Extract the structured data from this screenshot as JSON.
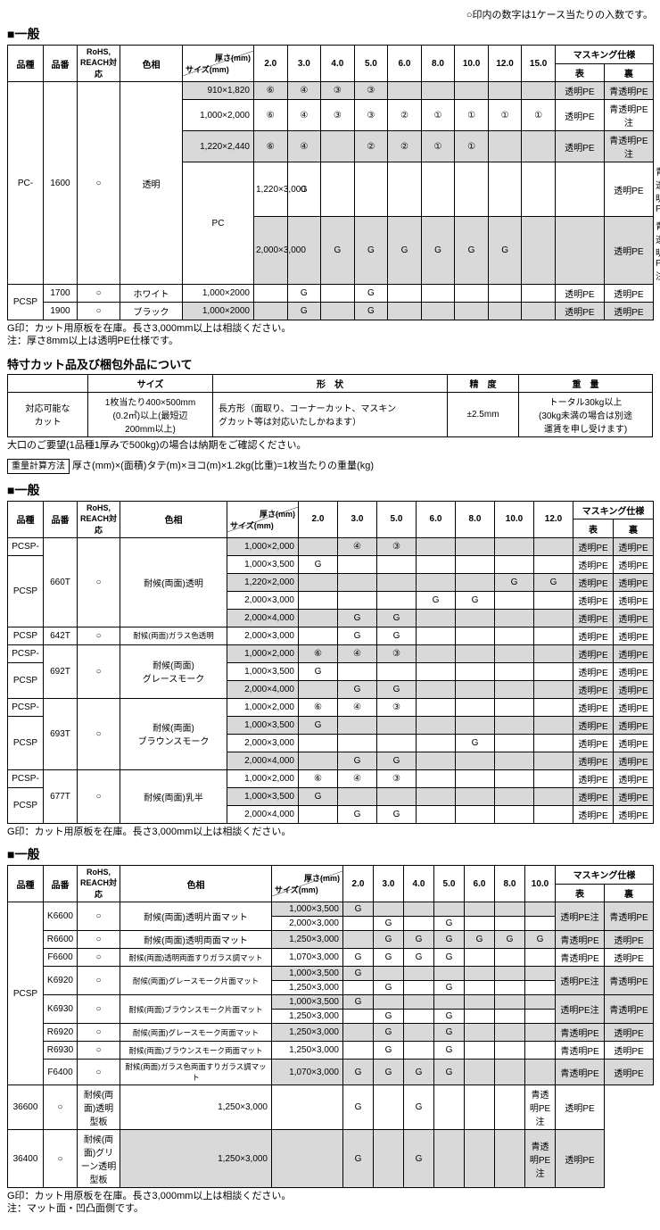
{
  "topNote": "○印内の数字は1ケース当たりの入数です。",
  "sectionTitle": "一般",
  "headers": {
    "type": "品種",
    "code": "品番",
    "rohs": "RoHS,\nREACH対応",
    "color": "色相",
    "thickTop": "厚さ(mm)",
    "thickBottom": "サイズ(mm)",
    "mask": "マスキング仕様",
    "front": "表",
    "back": "裏",
    "size": "サイズ",
    "shape": "形　状",
    "prec": "精　度",
    "weight": "重　量"
  },
  "t1": {
    "cols": [
      "2.0",
      "3.0",
      "4.0",
      "5.0",
      "6.0",
      "8.0",
      "10.0",
      "12.0",
      "15.0"
    ],
    "rows": [
      {
        "type": "PC-",
        "code": "1600",
        "rohs": "○",
        "color": "透明",
        "sz": "910×1,820",
        "v": [
          "⑥",
          "④",
          "③",
          "③",
          "",
          "",
          "",
          "",
          ""
        ],
        "f": "透明PE",
        "b": "青透明PE",
        "sh": true,
        "rs": {
          "type": 5,
          "code": 5,
          "rohs": 5,
          "color": 5
        },
        "ty": true
      },
      {
        "sz": "1,000×2,000",
        "v": [
          "⑥",
          "④",
          "③",
          "③",
          "②",
          "①",
          "①",
          "①",
          "①"
        ],
        "f": "透明PE",
        "b": "青透明PE注"
      },
      {
        "sz": "1,220×2,440",
        "v": [
          "⑥",
          "④",
          "",
          "②",
          "②",
          "①",
          "①",
          "",
          ""
        ],
        "f": "透明PE",
        "b": "青透明PE注",
        "sh": true
      },
      {
        "type": "PC",
        "sz": "1,220×3,000",
        "v": [
          "G",
          "",
          "",
          "",
          "",
          "",
          "",
          "",
          ""
        ],
        "f": "透明PE",
        "b": "青透明PE",
        "ty": true,
        "rs": {
          "type": 2
        }
      },
      {
        "sz": "2,000×3,000",
        "v": [
          "",
          "G",
          "G",
          "G",
          "G",
          "G",
          "G",
          "",
          ""
        ],
        "f": "透明PE",
        "b": "青透明PE注",
        "sh": true
      },
      {
        "type": "PCSP",
        "code": "1700",
        "rohs": "○",
        "color": "ホワイト",
        "sz": "1,000×2000",
        "v": [
          "",
          "G",
          "",
          "G",
          "",
          "",
          "",
          "",
          ""
        ],
        "f": "透明PE",
        "b": "透明PE",
        "ty": true,
        "rs": {
          "type": 2
        }
      },
      {
        "code": "1900",
        "rohs": "○",
        "color": "ブラック",
        "sz": "1,000×2000",
        "v": [
          "",
          "G",
          "",
          "G",
          "",
          "",
          "",
          "",
          ""
        ],
        "f": "透明PE",
        "b": "透明PE",
        "sh": true
      }
    ]
  },
  "notes1": "G印：カット用原板を在庫。長さ3,000mm以上は相談ください。\n注：厚さ8mm以上は透明PE仕様です。",
  "subhead1": "特寸カット品及び梱包外品について",
  "cutTable": {
    "r1": "対応可能な\nカット",
    "size": "1枚当たり400×500mm\n(0.2㎡)以上(最短辺\n200mm以上)",
    "shape": "長方形（面取り、コーナーカット、マスキン\nグカット等は対応いたしかねます）",
    "prec": "±2.5mm",
    "weight": "トータル30kg以上\n(30kg未満の場合は別途\n運賃を申し受けます)"
  },
  "orderNote": "大口のご要望(1品種1厚みで500kg)の場合は納期をご確認ください。",
  "calcLabel": "重量計算方法",
  "calcText": " 厚さ(mm)×(面積)タテ(m)×ヨコ(m)×1.2kg(比重)=1枚当たりの重量(kg)",
  "t2": {
    "cols": [
      "2.0",
      "3.0",
      "5.0",
      "6.0",
      "8.0",
      "10.0",
      "12.0"
    ],
    "rows": [
      {
        "type": "PCSP-",
        "code": "660T",
        "rohs": "○",
        "color": "耐候(両面)透明",
        "sz": "1,000×2,000",
        "v": [
          "",
          "④",
          "③",
          "",
          "",
          "",
          ""
        ],
        "f": "透明PE",
        "b": "透明PE",
        "sh": true,
        "ty": true,
        "rs": {
          "code": 5,
          "rohs": 5,
          "color": 5
        }
      },
      {
        "type": "PCSP",
        "sz": "1,000×3,500",
        "v": [
          "G",
          "",
          "",
          "",
          "",
          "",
          ""
        ],
        "f": "透明PE",
        "b": "透明PE",
        "ty": true,
        "rs": {
          "type": 4
        }
      },
      {
        "sz": "1,220×2,000",
        "v": [
          "",
          "",
          "",
          "",
          "",
          "G",
          "G"
        ],
        "f": "透明PE",
        "b": "透明PE",
        "sh": true
      },
      {
        "sz": "2,000×3,000",
        "v": [
          "",
          "",
          "",
          "G",
          "G",
          "",
          ""
        ],
        "f": "透明PE",
        "b": "透明PE"
      },
      {
        "sz": "2,000×4,000",
        "v": [
          "",
          "G",
          "G",
          "",
          "",
          "",
          ""
        ],
        "f": "透明PE",
        "b": "透明PE",
        "sh": true
      },
      {
        "type": "PCSP",
        "code": "642T",
        "rohs": "○",
        "color": "耐候(両面)ガラス色透明",
        "sz": "2,000×3,000",
        "v": [
          "",
          "G",
          "G",
          "",
          "",
          "",
          ""
        ],
        "f": "透明PE",
        "b": "透明PE",
        "ty": true,
        "sc": true
      },
      {
        "type": "PCSP-",
        "code": "692T",
        "rohs": "○",
        "color": "耐候(両面)\nグレースモーク",
        "sz": "1,000×2,000",
        "v": [
          "⑥",
          "④",
          "③",
          "",
          "",
          "",
          ""
        ],
        "f": "透明PE",
        "b": "透明PE",
        "sh": true,
        "ty": true,
        "rs": {
          "code": 3,
          "rohs": 3,
          "color": 3
        }
      },
      {
        "type": "PCSP",
        "sz": "1,000×3,500",
        "v": [
          "G",
          "",
          "",
          "",
          "",
          "",
          ""
        ],
        "f": "透明PE",
        "b": "透明PE",
        "ty": true,
        "rs": {
          "type": 2
        }
      },
      {
        "sz": "2,000×4,000",
        "v": [
          "",
          "G",
          "G",
          "",
          "",
          "",
          ""
        ],
        "f": "透明PE",
        "b": "透明PE",
        "sh": true
      },
      {
        "type": "PCSP-",
        "code": "693T",
        "rohs": "○",
        "color": "耐候(両面)\nブラウンスモーク",
        "sz": "1,000×2,000",
        "v": [
          "⑥",
          "④",
          "③",
          "",
          "",
          "",
          ""
        ],
        "f": "透明PE",
        "b": "透明PE",
        "ty": true,
        "rs": {
          "code": 4,
          "rohs": 4,
          "color": 4
        }
      },
      {
        "type": "PCSP",
        "sz": "1,000×3,500",
        "v": [
          "G",
          "",
          "",
          "",
          "",
          "",
          ""
        ],
        "f": "透明PE",
        "b": "透明PE",
        "sh": true,
        "ty": true,
        "rs": {
          "type": 3
        }
      },
      {
        "sz": "2,000×3,000",
        "v": [
          "",
          "",
          "",
          "",
          "G",
          "",
          ""
        ],
        "f": "透明PE",
        "b": "透明PE"
      },
      {
        "sz": "2,000×4,000",
        "v": [
          "",
          "G",
          "G",
          "",
          "",
          "",
          ""
        ],
        "f": "透明PE",
        "b": "透明PE",
        "sh": true
      },
      {
        "type": "PCSP-",
        "code": "677T",
        "rohs": "○",
        "color": "耐候(両面)乳半",
        "sz": "1,000×2,000",
        "v": [
          "⑥",
          "④",
          "③",
          "",
          "",
          "",
          ""
        ],
        "f": "透明PE",
        "b": "透明PE",
        "ty": true,
        "rs": {
          "code": 3,
          "rohs": 3,
          "color": 3
        }
      },
      {
        "type": "PCSP",
        "sz": "1,000×3,500",
        "v": [
          "G",
          "",
          "",
          "",
          "",
          "",
          ""
        ],
        "f": "透明PE",
        "b": "透明PE",
        "sh": true,
        "ty": true,
        "rs": {
          "type": 2
        }
      },
      {
        "sz": "2,000×4,000",
        "v": [
          "",
          "G",
          "G",
          "",
          "",
          "",
          ""
        ],
        "f": "透明PE",
        "b": "透明PE"
      }
    ]
  },
  "notes2": "G印：カット用原板を在庫。長さ3,000mm以上は相談ください。",
  "t3": {
    "cols": [
      "2.0",
      "3.0",
      "4.0",
      "5.0",
      "6.0",
      "8.0",
      "10.0"
    ],
    "rows": [
      {
        "type": "PCSP",
        "code": "K6600",
        "rohs": "○",
        "color": "耐候(両面)透明片面マット",
        "sz": "1,000×3,500",
        "v": [
          "G",
          "",
          "",
          "",
          "",
          "",
          ""
        ],
        "f": "透明PE注",
        "b": "青透明PE",
        "sh": true,
        "ty": true,
        "rs": {
          "type": 11,
          "code": 2,
          "rohs": 2,
          "color": 2,
          "f": 2,
          "b": 2
        }
      },
      {
        "sz": "2,000×3,000",
        "v": [
          "",
          "G",
          "",
          "G",
          "",
          "",
          ""
        ]
      },
      {
        "code": "R6600",
        "rohs": "○",
        "color": "耐候(両面)透明両面マット",
        "sz": "1,250×3,000",
        "v": [
          "",
          "G",
          "G",
          "G",
          "G",
          "G",
          "G"
        ],
        "f": "青透明PE",
        "b": "透明PE",
        "sh": true
      },
      {
        "code": "F6600",
        "rohs": "○",
        "color": "耐候(両面)透明両面すりガラス調マット",
        "sz": "1,070×3,000",
        "v": [
          "G",
          "G",
          "G",
          "G",
          "",
          "",
          ""
        ],
        "f": "青透明PE",
        "b": "透明PE",
        "sc": true
      },
      {
        "code": "K6920",
        "rohs": "○",
        "color": "耐候(両面)グレースモーク片面マット",
        "sz": "1,000×3,500",
        "v": [
          "G",
          "",
          "",
          "",
          "",
          "",
          ""
        ],
        "f": "透明PE注",
        "b": "青透明PE",
        "sh": true,
        "rs": {
          "code": 2,
          "rohs": 2,
          "color": 2,
          "f": 2,
          "b": 2
        },
        "sc": true
      },
      {
        "sz": "1,250×3,000",
        "v": [
          "",
          "G",
          "",
          "G",
          "",
          "",
          ""
        ]
      },
      {
        "code": "K6930",
        "rohs": "○",
        "color": "耐候(両面)ブラウンスモーク片面マット",
        "sz": "1,000×3,500",
        "v": [
          "G",
          "",
          "",
          "",
          "",
          "",
          ""
        ],
        "f": "透明PE注",
        "b": "青透明PE",
        "sh": true,
        "rs": {
          "code": 2,
          "rohs": 2,
          "color": 2,
          "f": 2,
          "b": 2
        },
        "sc": true
      },
      {
        "sz": "1,250×3,000",
        "v": [
          "",
          "G",
          "",
          "G",
          "",
          "",
          ""
        ]
      },
      {
        "code": "R6920",
        "rohs": "○",
        "color": "耐候(両面)グレースモーク両面マット",
        "sz": "1,250×3,000",
        "v": [
          "",
          "G",
          "",
          "G",
          "",
          "",
          ""
        ],
        "f": "青透明PE",
        "b": "透明PE",
        "sh": true,
        "sc": true
      },
      {
        "code": "R6930",
        "rohs": "○",
        "color": "耐候(両面)ブラウンスモーク両面マット",
        "sz": "1,250×3,000",
        "v": [
          "",
          "G",
          "",
          "G",
          "",
          "",
          ""
        ],
        "f": "青透明PE",
        "b": "透明PE",
        "sc": true
      },
      {
        "code": "F6400",
        "rohs": "○",
        "color": "耐候(両面)ガラス色両面すりガラス調マット",
        "sz": "1,070×3,000",
        "v": [
          "G",
          "G",
          "G",
          "G",
          "",
          "",
          ""
        ],
        "f": "青透明PE",
        "b": "透明PE",
        "sh": true,
        "sc": true
      },
      {
        "code": "36600",
        "rohs": "○",
        "color": "耐候(両面)透明型板",
        "sz": "1,250×3,000",
        "v": [
          "",
          "G",
          "",
          "G",
          "",
          "",
          ""
        ],
        "f": "青透明PE注",
        "b": "透明PE"
      },
      {
        "code": "36400",
        "rohs": "○",
        "color": "耐候(両面)グリーン透明型板",
        "sz": "1,250×3,000",
        "v": [
          "",
          "G",
          "",
          "G",
          "",
          "",
          ""
        ],
        "f": "青透明PE注",
        "b": "透明PE",
        "sh": true
      }
    ]
  },
  "notes3": "G印：カット用原板を在庫。長さ3,000mm以上は相談ください。\n注：マット面・凹凸面側です。"
}
